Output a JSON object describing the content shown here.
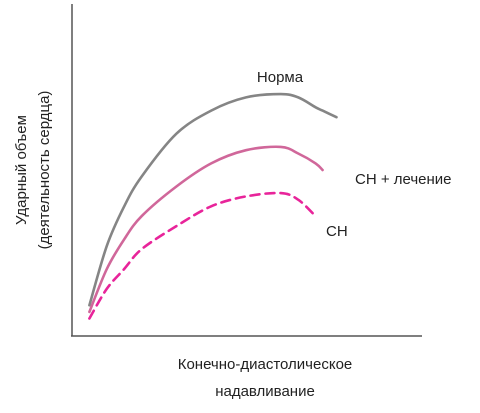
{
  "chart_data": {
    "type": "line",
    "xlabel": [
      "Конечно-диастолическое",
      "надавливание"
    ],
    "ylabel": [
      "Ударный объем",
      "(деятельность сердца)"
    ],
    "x": [
      5,
      10,
      15,
      20,
      30,
      40,
      50,
      60,
      65,
      70,
      72,
      76
    ],
    "xlim": [
      0,
      100
    ],
    "ylim": [
      0,
      100
    ],
    "series": [
      {
        "name": "Норма",
        "color": "#858585",
        "dash": false,
        "values": [
          9,
          27,
          39,
          48,
          61,
          68,
          72,
          73,
          72,
          69,
          68,
          66
        ]
      },
      {
        "name": "СН + лечение",
        "color": "#d0679a",
        "dash": false,
        "values": [
          7,
          20,
          29,
          36,
          45,
          52,
          56,
          57,
          55,
          52,
          50,
          null
        ]
      },
      {
        "name": "СН",
        "color": "#e8249a",
        "dash": true,
        "values": [
          5,
          14,
          20,
          26,
          33,
          39,
          42,
          43,
          41,
          36,
          null,
          null
        ]
      }
    ]
  }
}
